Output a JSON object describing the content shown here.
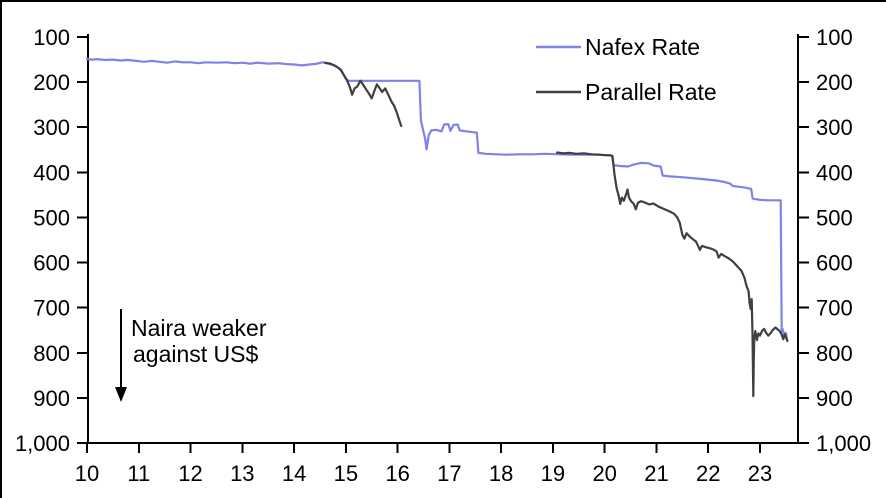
{
  "frame": {
    "background": "#ffffff",
    "border_color": "#000000",
    "axis_color": "#000000"
  },
  "chart_data": {
    "type": "line",
    "title": "",
    "xlabel": "",
    "ylabel": "",
    "x_axis": {
      "tick_values": [
        10,
        11,
        12,
        13,
        14,
        15,
        16,
        17,
        18,
        19,
        20,
        21,
        22,
        23
      ],
      "tick_labels": [
        "10",
        "11",
        "12",
        "13",
        "14",
        "15",
        "16",
        "17",
        "18",
        "19",
        "20",
        "21",
        "22",
        "23"
      ],
      "range": [
        10,
        23.75
      ],
      "unit": "year (2010-2023)"
    },
    "y_axis": {
      "tick_values": [
        100,
        200,
        300,
        400,
        500,
        600,
        700,
        800,
        900,
        1000
      ],
      "tick_labels": [
        "100",
        "200",
        "300",
        "400",
        "500",
        "600",
        "700",
        "800",
        "900",
        "1,000"
      ],
      "range": [
        100,
        1000
      ],
      "inverted": true,
      "mirrored_right": true,
      "grid": false,
      "unit": "naira per US$"
    },
    "legend": {
      "position": "top-right",
      "entries": [
        {
          "label": "Nafex Rate",
          "color": "#8181ec"
        },
        {
          "label": "Parallel Rate",
          "color": "#404040"
        }
      ]
    },
    "annotation": {
      "line1": "Naira weaker",
      "line2": "against US$",
      "arrow_direction": "down"
    },
    "series": [
      {
        "name": "Nafex Rate",
        "color": "#8181ec",
        "segments": [
          [
            [
              10.0,
              149
            ],
            [
              10.1,
              150
            ],
            [
              10.2,
              149
            ],
            [
              10.35,
              151
            ],
            [
              10.5,
              150
            ],
            [
              10.65,
              152
            ],
            [
              10.8,
              151
            ],
            [
              10.95,
              153
            ],
            [
              11.1,
              155
            ],
            [
              11.25,
              153
            ],
            [
              11.4,
              155
            ],
            [
              11.55,
              157
            ],
            [
              11.7,
              154
            ],
            [
              11.85,
              156
            ],
            [
              12.0,
              156
            ],
            [
              12.15,
              158
            ],
            [
              12.3,
              156
            ],
            [
              12.5,
              157
            ],
            [
              12.7,
              156
            ],
            [
              12.85,
              158
            ],
            [
              13.0,
              157
            ],
            [
              13.15,
              159
            ],
            [
              13.3,
              157
            ],
            [
              13.5,
              159
            ],
            [
              13.7,
              158
            ],
            [
              13.85,
              160
            ],
            [
              14.0,
              161
            ],
            [
              14.15,
              163
            ],
            [
              14.3,
              161
            ],
            [
              14.45,
              159
            ],
            [
              14.55,
              156
            ],
            [
              14.65,
              159
            ],
            [
              14.75,
              162
            ],
            [
              14.85,
              168
            ],
            [
              14.9,
              174
            ],
            [
              14.95,
              183
            ],
            [
              15.0,
              192
            ],
            [
              15.05,
              197
            ],
            [
              15.5,
              197
            ],
            [
              16.0,
              197
            ],
            [
              16.42,
              197
            ],
            [
              16.45,
              285
            ],
            [
              16.5,
              310
            ],
            [
              16.53,
              325
            ],
            [
              16.56,
              349
            ],
            [
              16.6,
              318
            ],
            [
              16.65,
              307
            ],
            [
              16.75,
              306
            ],
            [
              16.85,
              309
            ],
            [
              16.9,
              294
            ],
            [
              16.98,
              293
            ],
            [
              17.02,
              308
            ],
            [
              17.08,
              295
            ],
            [
              17.16,
              294
            ],
            [
              17.2,
              307
            ],
            [
              17.32,
              309
            ],
            [
              17.45,
              311
            ],
            [
              17.53,
              312
            ],
            [
              17.56,
              357
            ],
            [
              17.7,
              359
            ],
            [
              17.9,
              360
            ],
            [
              18.1,
              361
            ],
            [
              18.35,
              360
            ],
            [
              18.6,
              360
            ],
            [
              18.85,
              359
            ],
            [
              19.1,
              360
            ],
            [
              19.35,
              361
            ],
            [
              19.6,
              361
            ],
            [
              19.85,
              361
            ],
            [
              20.05,
              362
            ],
            [
              20.14,
              363
            ],
            [
              20.17,
              384
            ],
            [
              20.3,
              386
            ],
            [
              20.45,
              387
            ],
            [
              20.55,
              383
            ],
            [
              20.7,
              379
            ],
            [
              20.85,
              380
            ],
            [
              20.95,
              385
            ],
            [
              21.08,
              387
            ],
            [
              21.12,
              407
            ],
            [
              21.25,
              409
            ],
            [
              21.4,
              410
            ],
            [
              21.6,
              412
            ],
            [
              21.8,
              414
            ],
            [
              22.0,
              416
            ],
            [
              22.15,
              418
            ],
            [
              22.3,
              421
            ],
            [
              22.42,
              425
            ],
            [
              22.47,
              430
            ],
            [
              22.6,
              432
            ],
            [
              22.72,
              434
            ],
            [
              22.83,
              437
            ],
            [
              22.86,
              458
            ],
            [
              23.0,
              461
            ],
            [
              23.15,
              462
            ],
            [
              23.3,
              462
            ],
            [
              23.4,
              462
            ],
            [
              23.42,
              754
            ],
            [
              23.44,
              748
            ],
            [
              23.47,
              762
            ],
            [
              23.5,
              756
            ],
            [
              23.52,
              768
            ]
          ]
        ]
      },
      {
        "name": "Parallel Rate",
        "color": "#404040",
        "segments": [
          [
            [
              14.6,
              157
            ],
            [
              14.7,
              159
            ],
            [
              14.8,
              164
            ],
            [
              14.9,
              172
            ],
            [
              14.97,
              186
            ],
            [
              15.03,
              198
            ],
            [
              15.08,
              212
            ],
            [
              15.12,
              228
            ],
            [
              15.17,
              214
            ],
            [
              15.22,
              210
            ],
            [
              15.28,
              197
            ],
            [
              15.33,
              205
            ],
            [
              15.38,
              214
            ],
            [
              15.45,
              226
            ],
            [
              15.5,
              236
            ],
            [
              15.55,
              220
            ],
            [
              15.6,
              205
            ],
            [
              15.65,
              213
            ],
            [
              15.7,
              222
            ],
            [
              15.76,
              214
            ],
            [
              15.82,
              228
            ],
            [
              15.88,
              243
            ],
            [
              15.93,
              252
            ],
            [
              15.98,
              266
            ],
            [
              16.03,
              284
            ],
            [
              16.07,
              297
            ]
          ],
          [
            [
              19.08,
              356
            ],
            [
              19.2,
              358
            ],
            [
              19.32,
              357
            ],
            [
              19.45,
              359
            ],
            [
              19.6,
              358
            ],
            [
              19.75,
              360
            ],
            [
              19.9,
              361
            ],
            [
              20.02,
              362
            ],
            [
              20.1,
              362
            ],
            [
              20.15,
              364
            ],
            [
              20.19,
              405
            ],
            [
              20.23,
              435
            ],
            [
              20.27,
              452
            ],
            [
              20.3,
              470
            ],
            [
              20.33,
              456
            ],
            [
              20.37,
              463
            ],
            [
              20.41,
              450
            ],
            [
              20.44,
              438
            ],
            [
              20.47,
              456
            ],
            [
              20.51,
              464
            ],
            [
              20.56,
              470
            ],
            [
              20.6,
              482
            ],
            [
              20.64,
              468
            ],
            [
              20.7,
              464
            ],
            [
              20.78,
              467
            ],
            [
              20.86,
              471
            ],
            [
              20.94,
              469
            ],
            [
              21.04,
              476
            ],
            [
              21.14,
              481
            ],
            [
              21.24,
              486
            ],
            [
              21.34,
              492
            ],
            [
              21.4,
              500
            ],
            [
              21.45,
              512
            ],
            [
              21.5,
              538
            ],
            [
              21.54,
              547
            ],
            [
              21.58,
              535
            ],
            [
              21.64,
              542
            ],
            [
              21.7,
              548
            ],
            [
              21.76,
              553
            ],
            [
              21.8,
              562
            ],
            [
              21.84,
              572
            ],
            [
              21.88,
              563
            ],
            [
              21.95,
              566
            ],
            [
              22.02,
              568
            ],
            [
              22.1,
              571
            ],
            [
              22.16,
              575
            ],
            [
              22.2,
              589
            ],
            [
              22.25,
              581
            ],
            [
              22.32,
              586
            ],
            [
              22.4,
              591
            ],
            [
              22.48,
              598
            ],
            [
              22.56,
              608
            ],
            [
              22.64,
              618
            ],
            [
              22.7,
              634
            ],
            [
              22.74,
              652
            ],
            [
              22.78,
              664
            ],
            [
              22.8,
              690
            ],
            [
              22.82,
              703
            ],
            [
              22.84,
              681
            ],
            [
              22.855,
              760
            ],
            [
              22.87,
              896
            ],
            [
              22.88,
              812
            ],
            [
              22.89,
              768
            ],
            [
              22.91,
              752
            ],
            [
              22.94,
              772
            ],
            [
              22.97,
              757
            ],
            [
              23.0,
              762
            ],
            [
              23.04,
              751
            ],
            [
              23.08,
              747
            ],
            [
              23.12,
              756
            ],
            [
              23.16,
              762
            ],
            [
              23.2,
              757
            ],
            [
              23.25,
              749
            ],
            [
              23.3,
              744
            ],
            [
              23.34,
              748
            ],
            [
              23.38,
              752
            ],
            [
              23.42,
              760
            ],
            [
              23.45,
              770
            ],
            [
              23.48,
              759
            ],
            [
              23.5,
              765
            ],
            [
              23.53,
              774
            ]
          ]
        ]
      }
    ]
  }
}
